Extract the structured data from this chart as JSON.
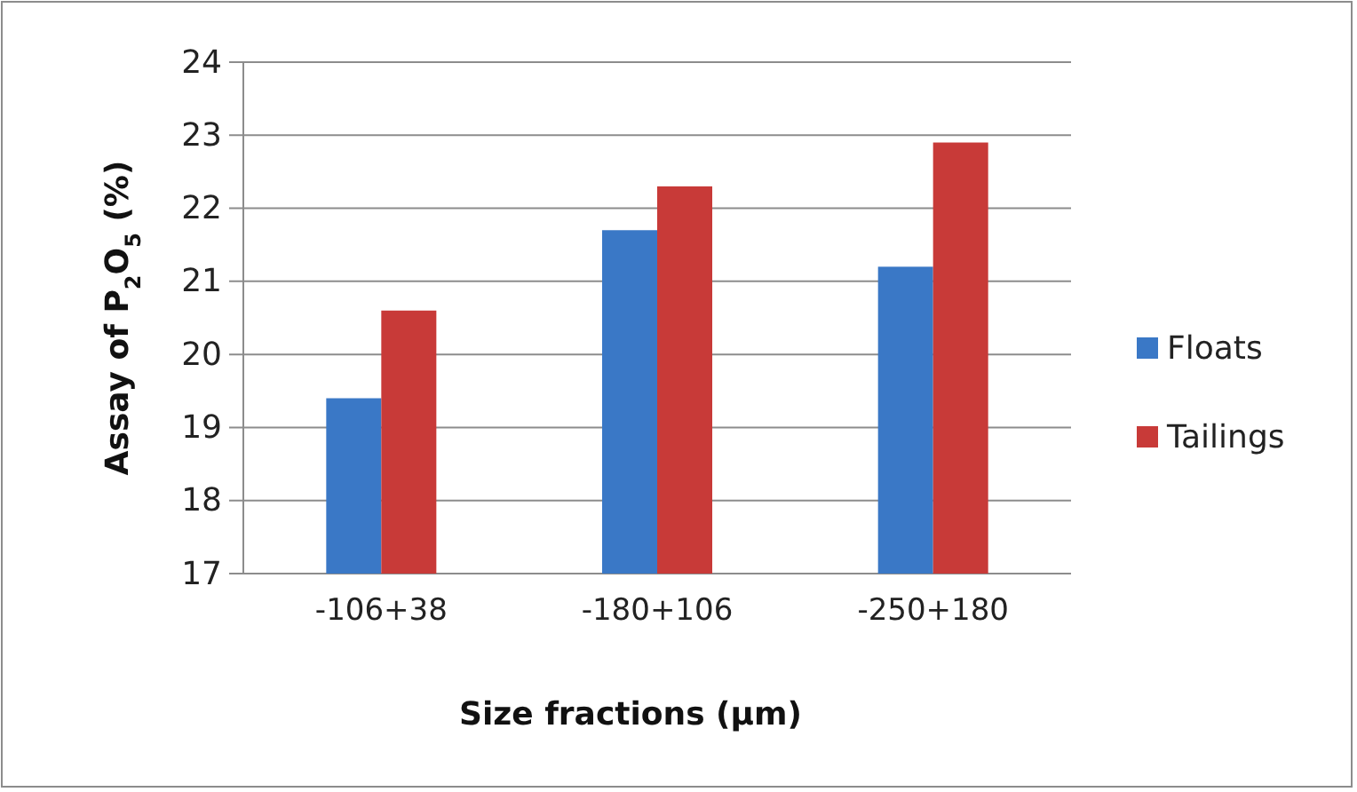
{
  "chart_data": {
    "type": "bar",
    "xlabel": "Size fractions (µm)",
    "ylabel": "Assay of P$_{2}$O$_{5}$ (%)",
    "categories": [
      "-106+38",
      "-180+106",
      "-250+180"
    ],
    "series": [
      {
        "name": "Floats",
        "color": "#3a78c6",
        "values": [
          19.4,
          21.7,
          21.2
        ]
      },
      {
        "name": "Tailings",
        "color": "#c83a38",
        "values": [
          20.6,
          22.3,
          22.9
        ]
      }
    ],
    "ylim": [
      17,
      24
    ],
    "yticks": [
      17,
      18,
      19,
      20,
      21,
      22,
      23,
      24
    ],
    "grid": "y",
    "legend": "right"
  }
}
